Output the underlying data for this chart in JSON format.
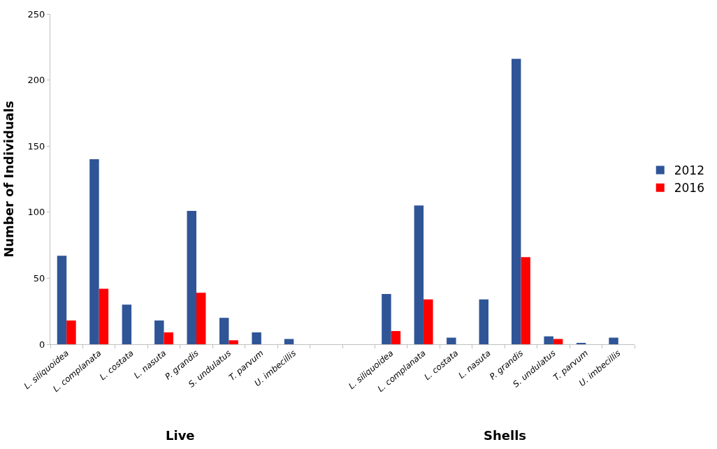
{
  "chart_data": {
    "type": "bar",
    "ylabel": "Number of Individuals",
    "categories": [
      "L. siliquoidea",
      "L. complanata",
      "L. costata",
      "L. nasuta",
      "P. grandis",
      "S. undulatus",
      "T. parvum",
      "U. imbecillis",
      null,
      null,
      "L. siliquoidea",
      "L. complanata",
      "L. costata",
      "L. nasuta",
      "P. grandis",
      "S. undulatus",
      "T. parvum",
      "U. imbecillis"
    ],
    "series": [
      {
        "name": "2012",
        "color": "#2f5597",
        "values": [
          67,
          140,
          30,
          18,
          101,
          20,
          9,
          4,
          null,
          null,
          38,
          105,
          5,
          34,
          216,
          6,
          1,
          5
        ]
      },
      {
        "name": "2016",
        "color": "#ff0000",
        "values": [
          18,
          42,
          null,
          9,
          39,
          3,
          null,
          null,
          null,
          null,
          10,
          34,
          null,
          null,
          66,
          4,
          null,
          null
        ]
      }
    ],
    "ylim": [
      0,
      250
    ],
    "yticks": [
      0,
      50,
      100,
      150,
      200,
      250
    ],
    "legend": "right",
    "annotations": [
      "Live",
      "Shells"
    ]
  }
}
